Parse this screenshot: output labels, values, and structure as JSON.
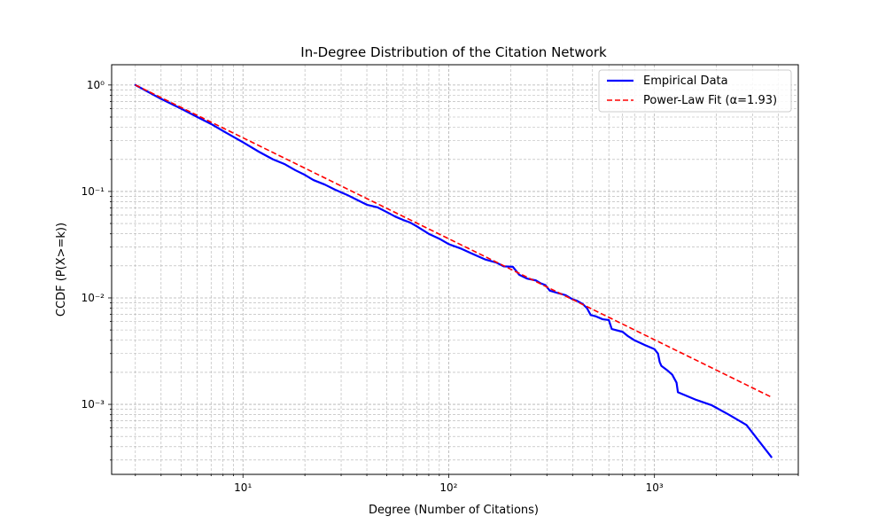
{
  "chart_data": {
    "type": "line",
    "title": "In-Degree Distribution of the Citation Network",
    "xlabel": "Degree (Number of Citations)",
    "ylabel": "CCDF (P(X>=k))",
    "x_scale": "log",
    "y_scale": "log",
    "xlim": [
      2.3,
      5000
    ],
    "ylim": [
      0.00022,
      1.55
    ],
    "x_ticks": [
      {
        "value": 10,
        "label": "10¹"
      },
      {
        "value": 100,
        "label": "10²"
      },
      {
        "value": 1000,
        "label": "10³"
      }
    ],
    "y_ticks": [
      {
        "value": 1,
        "label": "10⁰"
      },
      {
        "value": 0.1,
        "label": "10⁻¹"
      },
      {
        "value": 0.01,
        "label": "10⁻²"
      },
      {
        "value": 0.001,
        "label": "10⁻³"
      }
    ],
    "grid": "both major and minor",
    "legend_position": "top-right",
    "series": [
      {
        "name": "Empirical Data",
        "color": "#0000ff",
        "style": "solid",
        "x": [
          3,
          4,
          5,
          6,
          7,
          8,
          10,
          12,
          14,
          16,
          18,
          20,
          22,
          25,
          28,
          32,
          36,
          40,
          45,
          50,
          55,
          60,
          65,
          70,
          80,
          90,
          100,
          115,
          130,
          150,
          170,
          185,
          205,
          220,
          240,
          265,
          280,
          295,
          310,
          340,
          370,
          400,
          420,
          450,
          470,
          490,
          520,
          560,
          600,
          620,
          700,
          740,
          800,
          900,
          1000,
          1040,
          1060,
          1080,
          1150,
          1220,
          1280,
          1300,
          1600,
          1900,
          2300,
          2800,
          3700
        ],
        "y": [
          1.0,
          0.74,
          0.6,
          0.5,
          0.43,
          0.37,
          0.29,
          0.235,
          0.2,
          0.18,
          0.158,
          0.143,
          0.128,
          0.116,
          0.104,
          0.093,
          0.083,
          0.075,
          0.071,
          0.064,
          0.058,
          0.054,
          0.051,
          0.047,
          0.04,
          0.036,
          0.032,
          0.029,
          0.026,
          0.023,
          0.0215,
          0.0198,
          0.0196,
          0.0165,
          0.0152,
          0.0146,
          0.0137,
          0.0132,
          0.0117,
          0.0111,
          0.0106,
          0.0097,
          0.0094,
          0.0087,
          0.008,
          0.0069,
          0.0067,
          0.0063,
          0.0062,
          0.0051,
          0.0048,
          0.0044,
          0.004,
          0.0036,
          0.0033,
          0.003,
          0.0025,
          0.0023,
          0.0021,
          0.0019,
          0.0016,
          0.0013,
          0.0011,
          0.00098,
          0.0008,
          0.00064,
          0.00032
        ]
      },
      {
        "name": "Power-Law Fit (α=1.93)",
        "color": "#ff0000",
        "style": "dashed",
        "x": [
          3,
          3700
        ],
        "y": [
          1.0,
          0.00117
        ]
      }
    ]
  }
}
